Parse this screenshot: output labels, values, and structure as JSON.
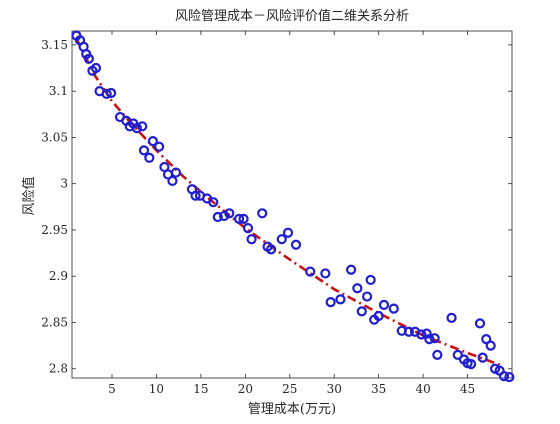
{
  "chart_data": {
    "type": "scatter",
    "title": "风险管理成本－风险评价值二维关系分析",
    "xlabel": "管理成本(万元)",
    "ylabel": "风险值",
    "xlim": [
      0.5,
      50
    ],
    "ylim": [
      2.79,
      3.165
    ],
    "x_ticks": [
      5,
      10,
      15,
      20,
      25,
      30,
      35,
      40,
      45
    ],
    "x_tick_labels": [
      "5",
      "10",
      "15",
      "20",
      "25",
      "30",
      "35",
      "40",
      "45"
    ],
    "y_ticks": [
      2.8,
      2.85,
      2.9,
      2.95,
      3.0,
      3.05,
      3.1,
      3.15
    ],
    "y_tick_labels": [
      "2.8",
      "2.85",
      "2.9",
      "2.95",
      "3",
      "3.05",
      "3.1",
      "3.15"
    ],
    "grid": false,
    "colors": {
      "points": "#1f1fd0",
      "fit": "#cc1111",
      "axes": "#262626"
    },
    "series": [
      {
        "marker": "circle-open",
        "points": [
          [
            1.0,
            3.16
          ],
          [
            1.4,
            3.155
          ],
          [
            1.8,
            3.148
          ],
          [
            2.1,
            3.14
          ],
          [
            2.4,
            3.135
          ],
          [
            2.8,
            3.122
          ],
          [
            3.2,
            3.125
          ],
          [
            3.6,
            3.1
          ],
          [
            4.4,
            3.097
          ],
          [
            4.9,
            3.098
          ],
          [
            5.9,
            3.072
          ],
          [
            6.6,
            3.068
          ],
          [
            7.0,
            3.062
          ],
          [
            7.4,
            3.065
          ],
          [
            7.8,
            3.06
          ],
          [
            8.4,
            3.062
          ],
          [
            8.6,
            3.036
          ],
          [
            9.2,
            3.028
          ],
          [
            9.6,
            3.046
          ],
          [
            10.3,
            3.04
          ],
          [
            10.9,
            3.018
          ],
          [
            11.3,
            3.01
          ],
          [
            11.8,
            3.003
          ],
          [
            12.2,
            3.012
          ],
          [
            14.0,
            2.994
          ],
          [
            14.4,
            2.987
          ],
          [
            14.9,
            2.987
          ],
          [
            15.7,
            2.984
          ],
          [
            16.4,
            2.98
          ],
          [
            16.9,
            2.964
          ],
          [
            17.6,
            2.965
          ],
          [
            18.2,
            2.968
          ],
          [
            19.3,
            2.962
          ],
          [
            19.8,
            2.962
          ],
          [
            20.3,
            2.952
          ],
          [
            20.7,
            2.94
          ],
          [
            21.9,
            2.968
          ],
          [
            22.5,
            2.932
          ],
          [
            22.9,
            2.929
          ],
          [
            24.1,
            2.94
          ],
          [
            24.8,
            2.947
          ],
          [
            25.7,
            2.934
          ],
          [
            27.3,
            2.905
          ],
          [
            29.0,
            2.903
          ],
          [
            29.6,
            2.872
          ],
          [
            30.7,
            2.875
          ],
          [
            31.9,
            2.907
          ],
          [
            32.6,
            2.887
          ],
          [
            33.1,
            2.862
          ],
          [
            33.7,
            2.878
          ],
          [
            34.1,
            2.896
          ],
          [
            34.5,
            2.853
          ],
          [
            35.0,
            2.857
          ],
          [
            35.6,
            2.869
          ],
          [
            36.7,
            2.865
          ],
          [
            37.6,
            2.841
          ],
          [
            38.4,
            2.84
          ],
          [
            39.1,
            2.84
          ],
          [
            39.8,
            2.837
          ],
          [
            40.4,
            2.838
          ],
          [
            40.7,
            2.832
          ],
          [
            41.3,
            2.833
          ],
          [
            41.6,
            2.815
          ],
          [
            43.2,
            2.855
          ],
          [
            43.9,
            2.815
          ],
          [
            44.6,
            2.81
          ],
          [
            45.0,
            2.806
          ],
          [
            45.4,
            2.805
          ],
          [
            46.4,
            2.849
          ],
          [
            46.7,
            2.812
          ],
          [
            47.1,
            2.832
          ],
          [
            47.6,
            2.825
          ],
          [
            48.1,
            2.8
          ],
          [
            48.6,
            2.798
          ],
          [
            49.1,
            2.792
          ],
          [
            49.7,
            2.791
          ]
        ]
      },
      {
        "line_style": "dash-dot",
        "points": [
          [
            1,
            3.157
          ],
          [
            3,
            3.118
          ],
          [
            5,
            3.089
          ],
          [
            7,
            3.067
          ],
          [
            10,
            3.036
          ],
          [
            13,
            3.008
          ],
          [
            16,
            2.983
          ],
          [
            20,
            2.952
          ],
          [
            25,
            2.918
          ],
          [
            30,
            2.886
          ],
          [
            35,
            2.86
          ],
          [
            40,
            2.836
          ],
          [
            45,
            2.817
          ],
          [
            49,
            2.803
          ]
        ]
      }
    ]
  }
}
